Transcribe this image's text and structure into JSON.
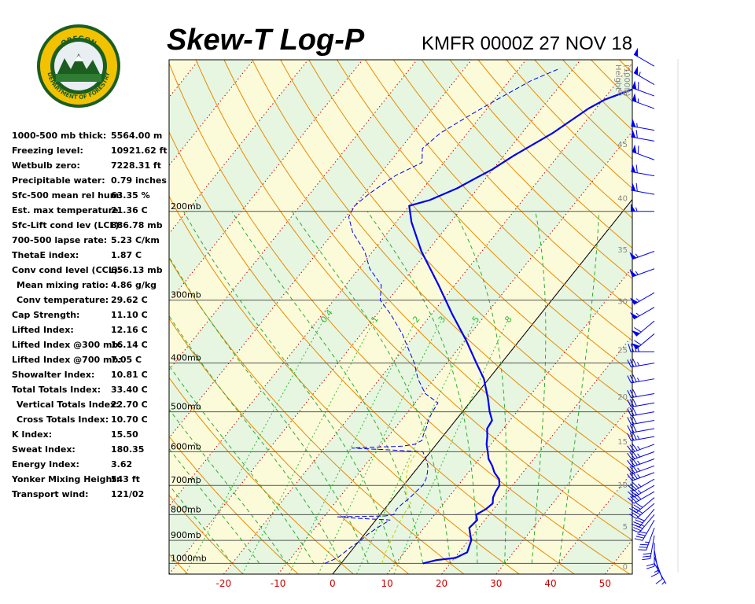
{
  "title": "Skew-T Log-P",
  "station": "KMFR 0000Z 27 NOV 18",
  "logo": {
    "top_text": "OREGON",
    "bottom_text": "DEPARTMENT OF FORESTRY"
  },
  "stats": [
    {
      "label": "1000-500 mb thick:",
      "value": "5564.00 m",
      "indent": false
    },
    {
      "label": "Freezing level:",
      "value": "10921.62 ft",
      "indent": false
    },
    {
      "label": "Wetbulb zero:",
      "value": "7228.31 ft",
      "indent": false
    },
    {
      "label": "Precipitable water:",
      "value": "0.79 inches",
      "indent": false
    },
    {
      "label": "Sfc-500 mean rel hum:",
      "value": "63.35 %",
      "indent": false
    },
    {
      "label": "Est. max temperature:",
      "value": "21.36 C",
      "indent": false
    },
    {
      "label": "Sfc-Lift cond lev (LCL):",
      "value": "886.78 mb",
      "indent": false
    },
    {
      "label": "700-500 lapse rate:",
      "value": "5.23 C/km",
      "indent": false
    },
    {
      "label": "ThetaE index:",
      "value": "1.87 C",
      "indent": false
    },
    {
      "label": "Conv cond level (CCL):",
      "value": "656.13 mb",
      "indent": false
    },
    {
      "label": "Mean mixing ratio:",
      "value": "4.86 g/kg",
      "indent": true
    },
    {
      "label": "Conv temperature:",
      "value": "29.62 C",
      "indent": true
    },
    {
      "label": "Cap Strength:",
      "value": "11.10 C",
      "indent": false
    },
    {
      "label": "Lifted Index:",
      "value": "12.16 C",
      "indent": false
    },
    {
      "label": "Lifted Index @300 mb:",
      "value": "16.14 C",
      "indent": false
    },
    {
      "label": "Lifted Index @700 mb:",
      "value": "7.05 C",
      "indent": false
    },
    {
      "label": "Showalter Index:",
      "value": "10.81 C",
      "indent": false
    },
    {
      "label": "Total Totals Index:",
      "value": "33.40 C",
      "indent": false
    },
    {
      "label": "Vertical Totals Index:",
      "value": "22.70 C",
      "indent": true
    },
    {
      "label": "Cross Totals Index:",
      "value": "10.70 C",
      "indent": true
    },
    {
      "label": "K Index:",
      "value": "15.50",
      "indent": false
    },
    {
      "label": "Sweat Index:",
      "value": "180.35",
      "indent": false
    },
    {
      "label": "Energy Index:",
      "value": "3.62",
      "indent": false
    },
    {
      "label": "Yonker Mixing Height:",
      "value": "543 ft",
      "indent": false
    },
    {
      "label": "Transport wind:",
      "value": "121/02",
      "indent": false
    }
  ],
  "chart_data": {
    "type": "skew-t",
    "x_range": [
      -30,
      55
    ],
    "y_range_mb": [
      1050,
      100
    ],
    "x_ticks": [
      -20,
      -10,
      0,
      10,
      20,
      30,
      40,
      50
    ],
    "pressure_labels": [
      {
        "p": 200,
        "label": "200mb"
      },
      {
        "p": 300,
        "label": "300mb"
      },
      {
        "p": 400,
        "label": "400mb"
      },
      {
        "p": 500,
        "label": "500mb"
      },
      {
        "p": 600,
        "label": "600mb"
      },
      {
        "p": 700,
        "label": "700mb"
      },
      {
        "p": 800,
        "label": "800mb"
      },
      {
        "p": 900,
        "label": "900mb"
      },
      {
        "p": 1000,
        "label": "1000mb"
      }
    ],
    "height_axis": {
      "title_lines": [
        "Height",
        "(1000ft)"
      ],
      "ticks": [
        {
          "label": "0",
          "p": 1013
        },
        {
          "label": "5",
          "p": 843
        },
        {
          "label": "10",
          "p": 697
        },
        {
          "label": "15",
          "p": 572
        },
        {
          "label": "20",
          "p": 466
        },
        {
          "label": "25",
          "p": 376
        },
        {
          "label": "30",
          "p": 301
        },
        {
          "label": "35",
          "p": 238
        },
        {
          "label": "40",
          "p": 188
        },
        {
          "label": "45",
          "p": 147
        },
        {
          "label": "50",
          "p": 116
        }
      ]
    },
    "mixing_ratio_labels": [
      "0.4",
      "1",
      "2",
      "3",
      "5",
      "8"
    ],
    "mixing_ratio_values": [
      0.4,
      1,
      2,
      3,
      5,
      8
    ],
    "temperature_profile": [
      [
        1000,
        15.0
      ],
      [
        985,
        17.0
      ],
      [
        975,
        20.2
      ],
      [
        950,
        21.5
      ],
      [
        925,
        21.0
      ],
      [
        900,
        20.5
      ],
      [
        875,
        19.4
      ],
      [
        850,
        18.3
      ],
      [
        820,
        18.6
      ],
      [
        800,
        17.6
      ],
      [
        780,
        18.6
      ],
      [
        760,
        19.0
      ],
      [
        740,
        18.2
      ],
      [
        720,
        17.8
      ],
      [
        700,
        17.6
      ],
      [
        680,
        16.6
      ],
      [
        660,
        14.8
      ],
      [
        640,
        13.4
      ],
      [
        620,
        11.7
      ],
      [
        600,
        10.5
      ],
      [
        580,
        9.2
      ],
      [
        560,
        8.2
      ],
      [
        540,
        7.0
      ],
      [
        520,
        6.7
      ],
      [
        500,
        5.0
      ],
      [
        470,
        2.7
      ],
      [
        430,
        -0.9
      ],
      [
        400,
        -4.6
      ],
      [
        360,
        -9.9
      ],
      [
        320,
        -16.2
      ],
      [
        280,
        -23.0
      ],
      [
        240,
        -31.1
      ],
      [
        210,
        -37.2
      ],
      [
        195,
        -40.0
      ],
      [
        190,
        -37.1
      ],
      [
        180,
        -33.8
      ],
      [
        172,
        -31.9
      ],
      [
        165,
        -30.1
      ],
      [
        155,
        -28.2
      ],
      [
        140,
        -24.4
      ],
      [
        125,
        -21.4
      ],
      [
        120,
        -19.7
      ],
      [
        115,
        -16.5
      ],
      [
        108,
        -11.6
      ]
    ],
    "dewpoint_profile": [
      [
        1000,
        -3.0
      ],
      [
        975,
        -1.5
      ],
      [
        950,
        -1.0
      ],
      [
        925,
        -0.5
      ],
      [
        900,
        0.2
      ],
      [
        875,
        0.6
      ],
      [
        850,
        1.4
      ],
      [
        820,
        2.6
      ],
      [
        812,
        -5.0
      ],
      [
        808,
        -7.5
      ],
      [
        805,
        1.0
      ],
      [
        800,
        2.5
      ],
      [
        780,
        2.2
      ],
      [
        760,
        2.5
      ],
      [
        740,
        3.0
      ],
      [
        720,
        3.2
      ],
      [
        700,
        3.5
      ],
      [
        680,
        3.2
      ],
      [
        660,
        2.5
      ],
      [
        640,
        1.6
      ],
      [
        620,
        0.2
      ],
      [
        600,
        -1.4
      ],
      [
        595,
        -8.0
      ],
      [
        590,
        -15.0
      ],
      [
        585,
        -6.0
      ],
      [
        580,
        -4.0
      ],
      [
        570,
        -3.2
      ],
      [
        555,
        -3.8
      ],
      [
        540,
        -4.2
      ],
      [
        520,
        -5.0
      ],
      [
        500,
        -5.5
      ],
      [
        480,
        -5.8
      ],
      [
        460,
        -9.5
      ],
      [
        430,
        -13.0
      ],
      [
        400,
        -16.0
      ],
      [
        380,
        -18.5
      ],
      [
        350,
        -22.5
      ],
      [
        320,
        -27.5
      ],
      [
        300,
        -31.5
      ],
      [
        280,
        -33.5
      ],
      [
        260,
        -38.0
      ],
      [
        240,
        -41.5
      ],
      [
        220,
        -46.5
      ],
      [
        205,
        -49.5
      ],
      [
        195,
        -50.0
      ],
      [
        185,
        -49.2
      ],
      [
        170,
        -47.0
      ],
      [
        160,
        -44.0
      ],
      [
        150,
        -46.0
      ],
      [
        140,
        -45.0
      ],
      [
        130,
        -42.5
      ],
      [
        120,
        -39.5
      ],
      [
        110,
        -36.0
      ],
      [
        104,
        -32.5
      ]
    ],
    "lifted_parcel": [
      [
        1000,
        7.5
      ],
      [
        950,
        6.5
      ],
      [
        900,
        5.8
      ],
      [
        850,
        5.0
      ],
      [
        800,
        4.3
      ],
      [
        760,
        4.0
      ],
      [
        740,
        2.3
      ],
      [
        720,
        1.5
      ],
      [
        700,
        0.3
      ],
      [
        680,
        -0.5
      ],
      [
        660,
        -1.3
      ],
      [
        640,
        -2.0
      ],
      [
        620,
        -2.3
      ],
      [
        600,
        -2.5
      ]
    ],
    "wind_barbs": [
      {
        "p": 1000,
        "dir": 150,
        "spd": 5
      },
      {
        "p": 970,
        "dir": 160,
        "spd": 10
      },
      {
        "p": 940,
        "dir": 170,
        "spd": 15
      },
      {
        "p": 910,
        "dir": 180,
        "spd": 20
      },
      {
        "p": 880,
        "dir": 190,
        "spd": 30
      },
      {
        "p": 850,
        "dir": 200,
        "spd": 35
      },
      {
        "p": 820,
        "dir": 210,
        "spd": 40
      },
      {
        "p": 800,
        "dir": 220,
        "spd": 40
      },
      {
        "p": 780,
        "dir": 220,
        "spd": 40
      },
      {
        "p": 760,
        "dir": 230,
        "spd": 40
      },
      {
        "p": 740,
        "dir": 230,
        "spd": 40
      },
      {
        "p": 720,
        "dir": 240,
        "spd": 40
      },
      {
        "p": 700,
        "dir": 240,
        "spd": 35
      },
      {
        "p": 680,
        "dir": 240,
        "spd": 35
      },
      {
        "p": 660,
        "dir": 250,
        "spd": 35
      },
      {
        "p": 640,
        "dir": 250,
        "spd": 35
      },
      {
        "p": 620,
        "dir": 250,
        "spd": 35
      },
      {
        "p": 600,
        "dir": 250,
        "spd": 35
      },
      {
        "p": 580,
        "dir": 250,
        "spd": 35
      },
      {
        "p": 560,
        "dir": 260,
        "spd": 35
      },
      {
        "p": 540,
        "dir": 260,
        "spd": 30
      },
      {
        "p": 520,
        "dir": 260,
        "spd": 30
      },
      {
        "p": 500,
        "dir": 260,
        "spd": 30
      },
      {
        "p": 480,
        "dir": 260,
        "spd": 30
      },
      {
        "p": 460,
        "dir": 260,
        "spd": 30
      },
      {
        "p": 430,
        "dir": 260,
        "spd": 35
      },
      {
        "p": 400,
        "dir": 260,
        "spd": 35
      },
      {
        "p": 380,
        "dir": 270,
        "spd": 35
      },
      {
        "p": 350,
        "dir": 230,
        "spd": 60
      },
      {
        "p": 330,
        "dir": 230,
        "spd": 60
      },
      {
        "p": 310,
        "dir": 240,
        "spd": 55
      },
      {
        "p": 290,
        "dir": 240,
        "spd": 55
      },
      {
        "p": 260,
        "dir": 250,
        "spd": 55
      },
      {
        "p": 240,
        "dir": 250,
        "spd": 55
      },
      {
        "p": 200,
        "dir": 270,
        "spd": 55
      },
      {
        "p": 185,
        "dir": 280,
        "spd": 60
      },
      {
        "p": 170,
        "dir": 280,
        "spd": 60
      },
      {
        "p": 158,
        "dir": 290,
        "spd": 60
      },
      {
        "p": 145,
        "dir": 280,
        "spd": 60
      },
      {
        "p": 138,
        "dir": 280,
        "spd": 55
      },
      {
        "p": 125,
        "dir": 290,
        "spd": 55
      },
      {
        "p": 118,
        "dir": 290,
        "spd": 60
      },
      {
        "p": 112,
        "dir": 300,
        "spd": 55
      },
      {
        "p": 103,
        "dir": 300,
        "spd": 50
      }
    ],
    "colors": {
      "temperature": "#0000ee",
      "dewpoint": "#0000ee",
      "parcel": "#cccc00",
      "dry_adiabat": "#e88a00",
      "moist_adiabat": "#33aa33",
      "isotherm": "#cc0000",
      "mixing_ratio": "#33bb33",
      "band_a": "#e6f6e0",
      "band_b": "#fbfbda",
      "x_tick_labels": "#cc0000",
      "height_labels": "#888888",
      "wind": "#0000ee"
    }
  }
}
